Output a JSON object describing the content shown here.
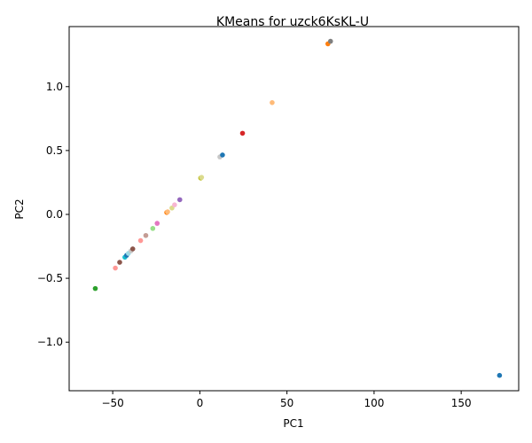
{
  "chart_data": {
    "type": "scatter",
    "title": "KMeans for uzck6KsKL-U",
    "xlabel": "PC1",
    "ylabel": "PC2",
    "xlim": [
      -75,
      183
    ],
    "ylim": [
      -1.38,
      1.47
    ],
    "xticks": [
      -50,
      0,
      50,
      100,
      150
    ],
    "yticks": [
      -1.0,
      -0.5,
      0.0,
      0.5,
      1.0
    ],
    "xtick_labels": [
      "−50",
      "0",
      "50",
      "100",
      "150"
    ],
    "ytick_labels": [
      "−1.0",
      "−0.5",
      "0.0",
      "0.5",
      "1.0"
    ],
    "grid": false,
    "points": [
      {
        "x": -60,
        "y": -0.58,
        "color": "#2ca02c"
      },
      {
        "x": -48.5,
        "y": -0.42,
        "color": "#ff9896"
      },
      {
        "x": -46,
        "y": -0.375,
        "color": "#8c564b"
      },
      {
        "x": -43,
        "y": -0.335,
        "color": "#17becf"
      },
      {
        "x": -42,
        "y": -0.32,
        "color": "#1f77b4"
      },
      {
        "x": -41,
        "y": -0.305,
        "color": "#9edae5"
      },
      {
        "x": -39.5,
        "y": -0.285,
        "color": "#c7c7c7"
      },
      {
        "x": -38.5,
        "y": -0.27,
        "color": "#8c564b"
      },
      {
        "x": -34,
        "y": -0.205,
        "color": "#ff9896"
      },
      {
        "x": -31,
        "y": -0.165,
        "color": "#c49c94"
      },
      {
        "x": -27,
        "y": -0.11,
        "color": "#98df8a"
      },
      {
        "x": -24.5,
        "y": -0.07,
        "color": "#e377c2"
      },
      {
        "x": -19,
        "y": 0.015,
        "color": "#ff7f0e"
      },
      {
        "x": -18.5,
        "y": 0.02,
        "color": "#ffbb78"
      },
      {
        "x": -16,
        "y": 0.05,
        "color": "#dbdb8d"
      },
      {
        "x": -14.5,
        "y": 0.075,
        "color": "#f7b6d2"
      },
      {
        "x": -11.5,
        "y": 0.115,
        "color": "#9467bd"
      },
      {
        "x": 0.5,
        "y": 0.285,
        "color": "#bcbd22"
      },
      {
        "x": 1,
        "y": 0.29,
        "color": "#dbdb8d"
      },
      {
        "x": 11.5,
        "y": 0.45,
        "color": "#c7c7c7"
      },
      {
        "x": 13,
        "y": 0.465,
        "color": "#1f77b4"
      },
      {
        "x": 24.5,
        "y": 0.635,
        "color": "#d62728"
      },
      {
        "x": 41.5,
        "y": 0.875,
        "color": "#ffbb78"
      },
      {
        "x": 73.5,
        "y": 1.335,
        "color": "#ff7f0e"
      },
      {
        "x": 75,
        "y": 1.355,
        "color": "#7f7f7f"
      },
      {
        "x": 172,
        "y": -1.26,
        "color": "#1f77b4"
      }
    ]
  }
}
